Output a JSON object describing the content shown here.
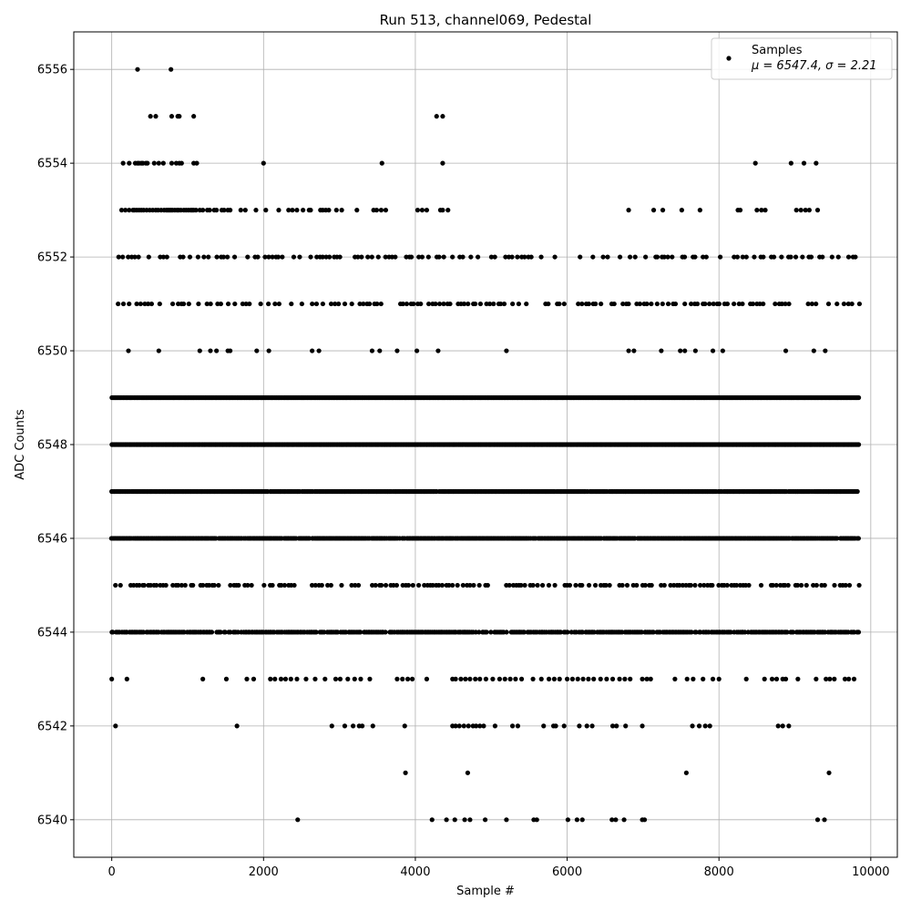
{
  "chart_data": {
    "type": "scatter",
    "title": "Run 513, channel069, Pedestal",
    "xlabel": "Sample #",
    "ylabel": "ADC Counts",
    "xlim": [
      -500,
      10350
    ],
    "ylim": [
      6539.2,
      6556.8
    ],
    "x_ticks": [
      0,
      2000,
      4000,
      6000,
      8000,
      10000
    ],
    "x_tick_labels": [
      "0",
      "2000",
      "4000",
      "6000",
      "8000",
      "10000"
    ],
    "y_ticks": [
      6540,
      6542,
      6544,
      6546,
      6548,
      6550,
      6552,
      6554,
      6556
    ],
    "y_tick_labels": [
      "6540",
      "6542",
      "6544",
      "6546",
      "6548",
      "6550",
      "6552",
      "6554",
      "6556"
    ],
    "grid": true,
    "legend_position": "top-right",
    "marker_color": "#000000",
    "series": [
      {
        "name": "Samples",
        "legend_line1": "Samples",
        "legend_line2": "μ = 6547.4, σ = 2.21",
        "x_max": 9840,
        "levels": [
          {
            "y": 6540,
            "x": [
              2450,
              4220,
              4410,
              4520,
              4650,
              4720,
              4920,
              5200,
              5560,
              5600,
              6010,
              6130,
              6200,
              6590,
              6640,
              6750,
              6990,
              7020,
              9300,
              9390
            ]
          },
          {
            "y": 6541,
            "x": [
              3870,
              4690,
              7570,
              9450
            ]
          },
          {
            "y": 6542,
            "x": [
              50,
              1650,
              2900,
              3070,
              3180,
              3260,
              3300,
              3440,
              3860,
              4490,
              4530,
              4580,
              4640,
              4700,
              4760,
              4800,
              4850,
              4900,
              5050,
              5280,
              5350,
              5690,
              5820,
              5850,
              5960,
              6160,
              6260,
              6330,
              6600,
              6650,
              6770,
              6990,
              7650,
              7740,
              7820,
              7880,
              8780,
              8840,
              8920
            ]
          },
          {
            "y": 6543,
            "x": [
              0,
              200,
              1200,
              1510,
              1780,
              1870,
              2090,
              2150,
              2230,
              2290,
              2360,
              2440,
              2560,
              2680,
              2810,
              2950,
              3010,
              3110,
              3200,
              3280,
              3400,
              3760,
              3830,
              3900,
              3960,
              4150,
              4490,
              4530,
              4600,
              4660,
              4720,
              4790,
              4850,
              4930,
              5020,
              5110,
              5180,
              5250,
              5320,
              5400,
              5550,
              5660,
              5760,
              5830,
              5900,
              6000,
              6070,
              6140,
              6210,
              6280,
              6350,
              6440,
              6520,
              6600,
              6690,
              6760,
              6830,
              6990,
              7050,
              7100,
              7420,
              7580,
              7660,
              7790,
              7920,
              8000,
              8360,
              8600,
              8700,
              8760,
              8840,
              8880,
              9040,
              9280,
              9410,
              9460,
              9520,
              9660,
              9710,
              9780
            ]
          },
          {
            "y": 6550,
            "x": [
              220,
              620,
              1160,
              1300,
              1380,
              1530,
              1560,
              1910,
              2070,
              2640,
              2730,
              3430,
              3530,
              3760,
              4020,
              4300,
              5200,
              6810,
              6880,
              7240,
              7490,
              7550,
              7690,
              7920,
              8050,
              8880,
              9250,
              9400
            ]
          },
          {
            "y": 6551,
            "step": 48,
            "gap_prob": 0.35,
            "seed": 11
          },
          {
            "y": 6552,
            "step": 45,
            "gap_prob": 0.42,
            "seed": 23
          },
          {
            "y": 6553,
            "x": [
              130,
              180,
              230,
              280,
              300,
              330,
              360,
              390,
              420,
              460,
              500,
              540,
              580,
              610,
              650,
              690,
              720,
              740,
              760,
              780,
              800,
              830,
              860,
              880,
              910,
              950,
              980,
              1010,
              1040,
              1060,
              1080,
              1110,
              1160,
              1200,
              1260,
              1290,
              1350,
              1380,
              1450,
              1480,
              1530,
              1560,
              1700,
              1760,
              1900,
              2030,
              2200,
              2330,
              2380,
              2440,
              2520,
              2600,
              2620,
              2750,
              2780,
              2820,
              2860,
              2960,
              3030,
              3230,
              3450,
              3490,
              3550,
              3610,
              4030,
              4090,
              4150,
              4330,
              4360,
              4430,
              6810,
              7140,
              7260,
              7510,
              7750,
              8250,
              8280,
              8500,
              8560,
              8610,
              9020,
              9080,
              9140,
              9190,
              9300
            ]
          },
          {
            "y": 6554,
            "x": [
              150,
              230,
              310,
              340,
              360,
              390,
              410,
              450,
              470,
              560,
              620,
              680,
              790,
              850,
              890,
              920,
              1080,
              1120,
              2000,
              3560,
              4360,
              8480,
              8950,
              9120,
              9280
            ]
          },
          {
            "y": 6555,
            "x": [
              510,
              580,
              790,
              870,
              890,
              1080,
              4280,
              4360
            ]
          },
          {
            "y": 6556,
            "x": [
              340,
              780
            ]
          },
          {
            "y": 6543,
            "x": []
          },
          {
            "y": 6544,
            "step": 20,
            "gap_prob": 0.12,
            "seed": 37
          },
          {
            "y": 6545,
            "step": 40,
            "gap_prob": 0.3,
            "seed": 41
          },
          {
            "y": 6546,
            "step": 16,
            "gap_prob": 0.06,
            "seed": 53
          },
          {
            "y": 6547,
            "step": 14,
            "gap_prob": 0.02,
            "seed": 67
          },
          {
            "y": 6548,
            "step": 12,
            "gap_prob": 0.0,
            "seed": 71
          },
          {
            "y": 6549,
            "step": 12,
            "gap_prob": 0.0,
            "seed": 83
          }
        ]
      }
    ]
  }
}
